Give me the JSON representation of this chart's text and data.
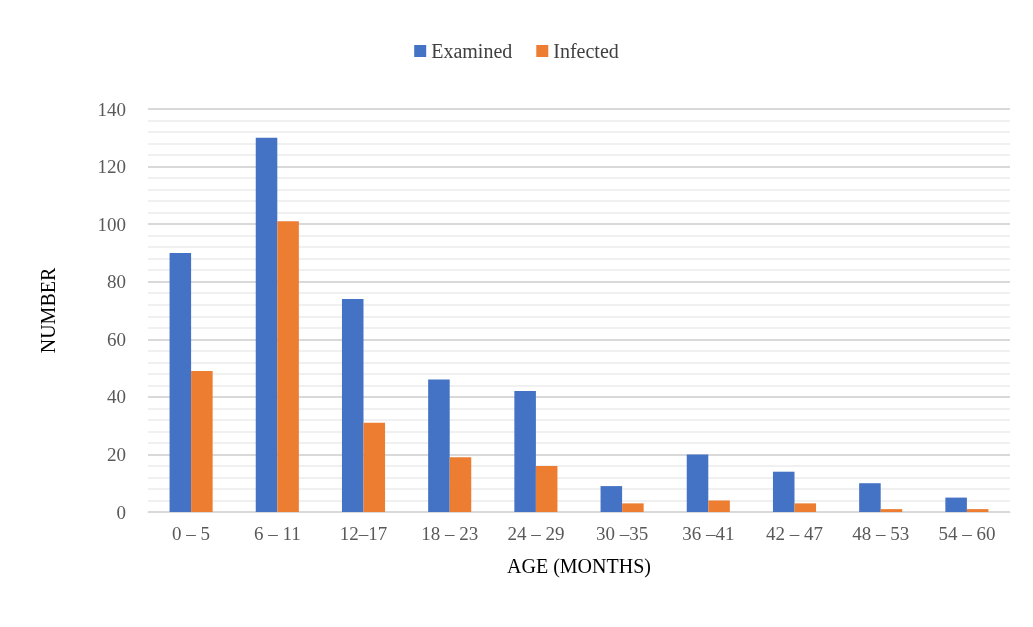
{
  "chart_data": {
    "type": "bar",
    "xlabel": "AGE (MONTHS)",
    "ylabel": "NUMBER",
    "categories": [
      "0 – 5",
      "6 – 11",
      "12–17",
      "18 – 23",
      "24 – 29",
      "30 –35",
      "36 –41",
      "42 – 47",
      "48 – 53",
      "54 – 60"
    ],
    "series": [
      {
        "name": "Examined",
        "color": "#4472c4",
        "values": [
          90,
          130,
          74,
          46,
          42,
          9,
          20,
          14,
          10,
          5
        ]
      },
      {
        "name": "Infected",
        "color": "#ed7d31",
        "values": [
          49,
          101,
          31,
          19,
          16,
          3,
          4,
          3,
          1,
          1
        ]
      }
    ],
    "ylim": [
      0,
      140
    ],
    "yticks": [
      0,
      20,
      40,
      60,
      80,
      100,
      120,
      140
    ],
    "grid": "y",
    "legend": "top"
  }
}
